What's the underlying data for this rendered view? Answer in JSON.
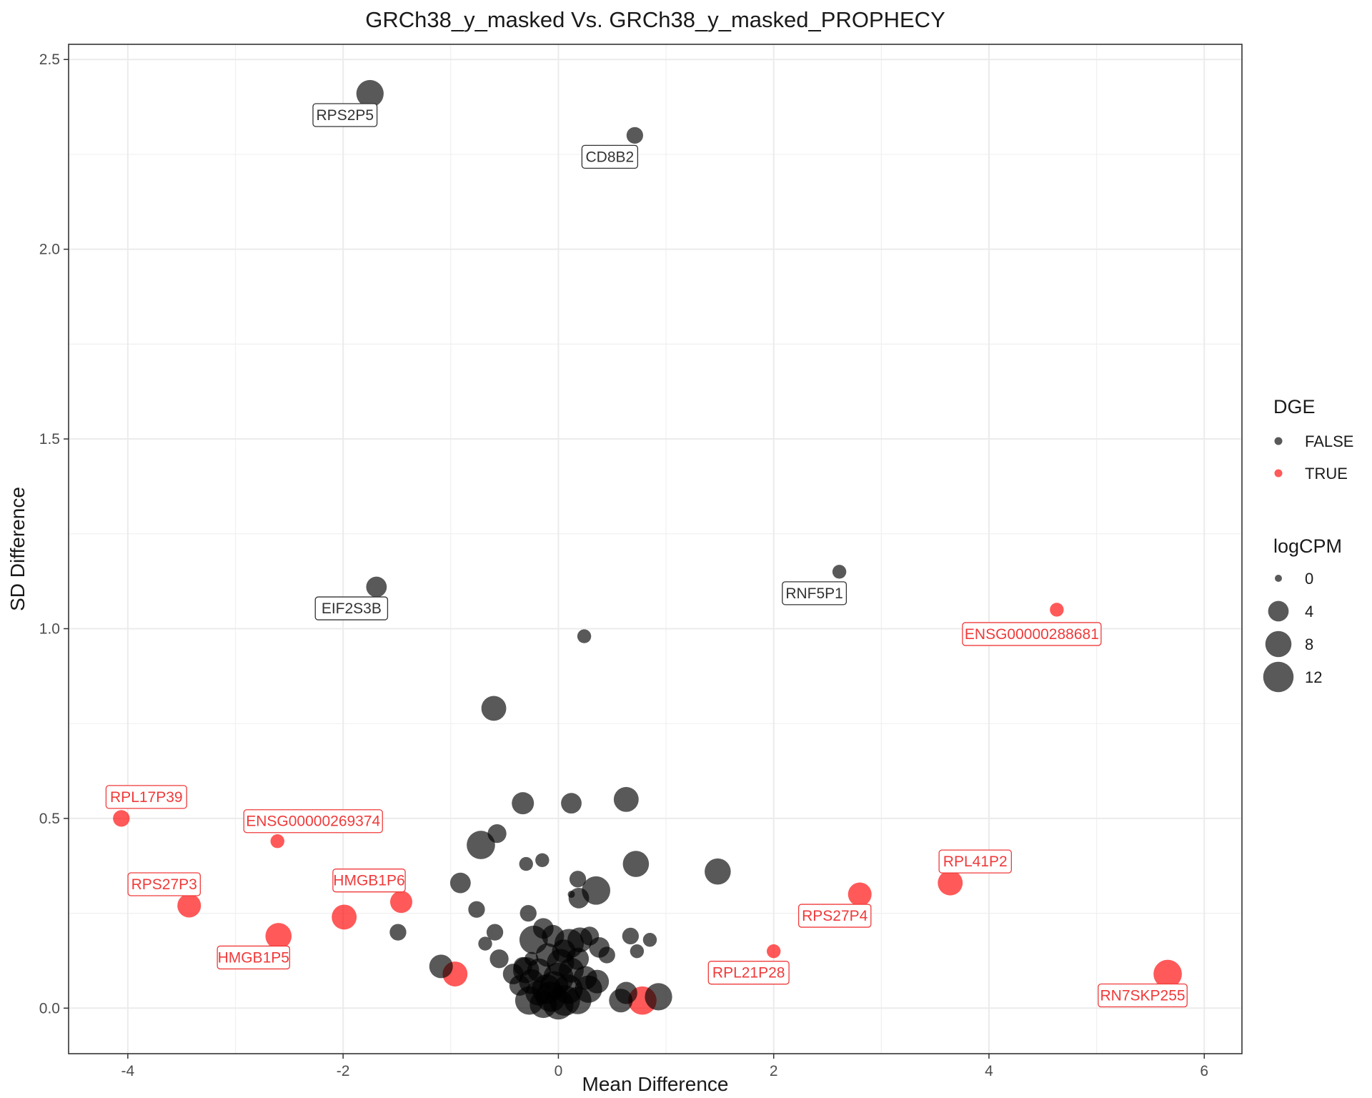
{
  "chart_data": {
    "type": "scatter",
    "title": "GRCh38_y_masked Vs. GRCh38_y_masked_PROPHECY",
    "xlabel": "Mean Difference",
    "ylabel": "SD Difference",
    "xlim": [
      -4.55,
      6.35
    ],
    "ylim": [
      -0.12,
      2.54
    ],
    "x_ticks": [
      -4,
      -2,
      0,
      2,
      4,
      6
    ],
    "x_tick_labels": [
      "-4",
      "-2",
      "0",
      "2",
      "4",
      "6"
    ],
    "y_ticks": [
      0.0,
      0.5,
      1.0,
      1.5,
      2.0,
      2.5
    ],
    "y_tick_labels": [
      "0.0",
      "0.5",
      "1.0",
      "1.5",
      "2.0",
      "2.5"
    ],
    "grid": true,
    "legend_position": "right",
    "colors": {
      "FALSE": "#000000",
      "TRUE": "#ff0000"
    },
    "legend": {
      "color_title": "DGE",
      "color_entries": [
        "FALSE",
        "TRUE"
      ],
      "size_title": "logCPM",
      "size_entries": [
        {
          "label": "0",
          "value": 0
        },
        {
          "label": "4",
          "value": 4
        },
        {
          "label": "8",
          "value": 8
        },
        {
          "label": "12",
          "value": 12
        }
      ]
    },
    "points": [
      {
        "x": -1.75,
        "y": 2.41,
        "size": 9,
        "dge": "FALSE",
        "label": "RPS2P5"
      },
      {
        "x": 0.71,
        "y": 2.3,
        "size": 2,
        "dge": "FALSE",
        "label": "CD8B2"
      },
      {
        "x": -1.69,
        "y": 1.11,
        "size": 4,
        "dge": "FALSE",
        "label": "EIF2S3B"
      },
      {
        "x": 2.61,
        "y": 1.15,
        "size": 1,
        "dge": "FALSE",
        "label": "RNF5P1"
      },
      {
        "x": 4.63,
        "y": 1.05,
        "size": 1,
        "dge": "TRUE",
        "label": "ENSG00000288681"
      },
      {
        "x": 0.24,
        "y": 0.98,
        "size": 1,
        "dge": "FALSE"
      },
      {
        "x": -0.6,
        "y": 0.79,
        "size": 7,
        "dge": "FALSE"
      },
      {
        "x": -4.06,
        "y": 0.5,
        "size": 2,
        "dge": "TRUE",
        "label": "RPL17P39"
      },
      {
        "x": -2.61,
        "y": 0.44,
        "size": 1,
        "dge": "TRUE",
        "label": "ENSG00000269374"
      },
      {
        "x": -3.43,
        "y": 0.27,
        "size": 6,
        "dge": "TRUE",
        "label": "RPS27P3"
      },
      {
        "x": -2.6,
        "y": 0.19,
        "size": 8,
        "dge": "TRUE",
        "label": "HMGB1P5"
      },
      {
        "x": -1.99,
        "y": 0.24,
        "size": 7,
        "dge": "TRUE"
      },
      {
        "x": -1.46,
        "y": 0.28,
        "size": 5,
        "dge": "TRUE",
        "label": "HMGB1P6"
      },
      {
        "x": -0.96,
        "y": 0.09,
        "size": 7,
        "dge": "TRUE"
      },
      {
        "x": 0.78,
        "y": 0.02,
        "size": 10,
        "dge": "TRUE"
      },
      {
        "x": 2.0,
        "y": 0.15,
        "size": 1,
        "dge": "TRUE",
        "label": "RPL21P28"
      },
      {
        "x": 2.8,
        "y": 0.3,
        "size": 6,
        "dge": "TRUE",
        "label": "RPS27P4"
      },
      {
        "x": 3.64,
        "y": 0.33,
        "size": 7,
        "dge": "TRUE",
        "label": "RPL41P2"
      },
      {
        "x": 5.66,
        "y": 0.09,
        "size": 10,
        "dge": "TRUE",
        "label": "RN7SKP255"
      },
      {
        "x": -0.33,
        "y": 0.54,
        "size": 5,
        "dge": "FALSE"
      },
      {
        "x": 0.12,
        "y": 0.54,
        "size": 4,
        "dge": "FALSE"
      },
      {
        "x": 0.63,
        "y": 0.55,
        "size": 7,
        "dge": "FALSE"
      },
      {
        "x": -0.72,
        "y": 0.43,
        "size": 10,
        "dge": "FALSE"
      },
      {
        "x": -0.57,
        "y": 0.46,
        "size": 3,
        "dge": "FALSE"
      },
      {
        "x": -0.3,
        "y": 0.38,
        "size": 1,
        "dge": "FALSE"
      },
      {
        "x": -0.15,
        "y": 0.39,
        "size": 1,
        "dge": "FALSE"
      },
      {
        "x": 0.72,
        "y": 0.38,
        "size": 8,
        "dge": "FALSE"
      },
      {
        "x": 1.48,
        "y": 0.36,
        "size": 8,
        "dge": "FALSE"
      },
      {
        "x": -0.91,
        "y": 0.33,
        "size": 4,
        "dge": "FALSE"
      },
      {
        "x": 0.18,
        "y": 0.34,
        "size": 2,
        "dge": "FALSE"
      },
      {
        "x": 0.35,
        "y": 0.31,
        "size": 10,
        "dge": "FALSE"
      },
      {
        "x": 0.12,
        "y": 0.3,
        "size": 0,
        "dge": "FALSE"
      },
      {
        "x": 0.19,
        "y": 0.29,
        "size": 4,
        "dge": "FALSE"
      },
      {
        "x": -0.76,
        "y": 0.26,
        "size": 2,
        "dge": "FALSE"
      },
      {
        "x": -0.28,
        "y": 0.25,
        "size": 2,
        "dge": "FALSE"
      },
      {
        "x": -1.49,
        "y": 0.2,
        "size": 2,
        "dge": "FALSE"
      },
      {
        "x": -0.59,
        "y": 0.2,
        "size": 2,
        "dge": "FALSE"
      },
      {
        "x": 0.67,
        "y": 0.19,
        "size": 2,
        "dge": "FALSE"
      },
      {
        "x": 0.85,
        "y": 0.18,
        "size": 1,
        "dge": "FALSE"
      },
      {
        "x": -0.68,
        "y": 0.17,
        "size": 1,
        "dge": "FALSE"
      },
      {
        "x": 0.73,
        "y": 0.15,
        "size": 1,
        "dge": "FALSE"
      },
      {
        "x": 0.38,
        "y": 0.16,
        "size": 4,
        "dge": "FALSE"
      },
      {
        "x": 0.45,
        "y": 0.14,
        "size": 2,
        "dge": "FALSE"
      },
      {
        "x": -0.55,
        "y": 0.13,
        "size": 3,
        "dge": "FALSE"
      },
      {
        "x": 0.29,
        "y": 0.19,
        "size": 3,
        "dge": "FALSE"
      },
      {
        "x": -1.09,
        "y": 0.11,
        "size": 6,
        "dge": "FALSE"
      },
      {
        "x": 0.93,
        "y": 0.03,
        "size": 9,
        "dge": "FALSE"
      },
      {
        "x": 0.63,
        "y": 0.04,
        "size": 5,
        "dge": "FALSE"
      },
      {
        "x": 0.58,
        "y": 0.02,
        "size": 6,
        "dge": "FALSE"
      },
      {
        "x": -0.27,
        "y": 0.02,
        "size": 10,
        "dge": "FALSE"
      },
      {
        "x": -0.23,
        "y": 0.18,
        "size": 10,
        "dge": "FALSE"
      },
      {
        "x": 0.1,
        "y": 0.17,
        "size": 11,
        "dge": "FALSE"
      },
      {
        "x": -0.05,
        "y": 0.19,
        "size": 5,
        "dge": "FALSE"
      },
      {
        "x": -0.14,
        "y": 0.21,
        "size": 4,
        "dge": "FALSE"
      },
      {
        "x": 0.2,
        "y": 0.18,
        "size": 7,
        "dge": "FALSE"
      },
      {
        "x": -0.1,
        "y": 0.14,
        "size": 6,
        "dge": "FALSE"
      },
      {
        "x": 0.05,
        "y": 0.15,
        "size": 6,
        "dge": "FALSE"
      },
      {
        "x": 0.18,
        "y": 0.13,
        "size": 5,
        "dge": "FALSE"
      },
      {
        "x": -0.33,
        "y": 0.11,
        "size": 3,
        "dge": "FALSE"
      },
      {
        "x": -0.3,
        "y": 0.1,
        "size": 8,
        "dge": "FALSE"
      },
      {
        "x": -0.18,
        "y": 0.1,
        "size": 6,
        "dge": "FALSE"
      },
      {
        "x": -0.42,
        "y": 0.09,
        "size": 4,
        "dge": "FALSE"
      },
      {
        "x": -0.25,
        "y": 0.07,
        "size": 7,
        "dge": "FALSE"
      },
      {
        "x": -0.36,
        "y": 0.06,
        "size": 4,
        "dge": "FALSE"
      },
      {
        "x": 0.25,
        "y": 0.08,
        "size": 6,
        "dge": "FALSE"
      },
      {
        "x": 0.36,
        "y": 0.07,
        "size": 6,
        "dge": "FALSE"
      },
      {
        "x": 0.28,
        "y": 0.05,
        "size": 9,
        "dge": "FALSE"
      },
      {
        "x": -0.11,
        "y": 0.05,
        "size": 11,
        "dge": "FALSE"
      },
      {
        "x": 0.09,
        "y": 0.05,
        "size": 11,
        "dge": "FALSE"
      },
      {
        "x": 0.0,
        "y": 0.08,
        "size": 12,
        "dge": "FALSE"
      },
      {
        "x": -0.07,
        "y": 0.03,
        "size": 12,
        "dge": "FALSE"
      },
      {
        "x": 0.06,
        "y": 0.02,
        "size": 12,
        "dge": "FALSE"
      },
      {
        "x": 0.18,
        "y": 0.02,
        "size": 9,
        "dge": "FALSE"
      },
      {
        "x": -0.14,
        "y": 0.01,
        "size": 9,
        "dge": "FALSE"
      },
      {
        "x": 0.0,
        "y": 0.01,
        "size": 12,
        "dge": "FALSE"
      },
      {
        "x": 0.02,
        "y": 0.12,
        "size": 9,
        "dge": "FALSE"
      },
      {
        "x": -0.04,
        "y": 0.06,
        "size": 10,
        "dge": "FALSE"
      },
      {
        "x": 0.12,
        "y": 0.1,
        "size": 7,
        "dge": "FALSE"
      },
      {
        "x": -0.19,
        "y": 0.04,
        "size": 7,
        "dge": "FALSE"
      },
      {
        "x": -0.25,
        "y": 0.13,
        "size": 1,
        "dge": "FALSE"
      }
    ]
  }
}
